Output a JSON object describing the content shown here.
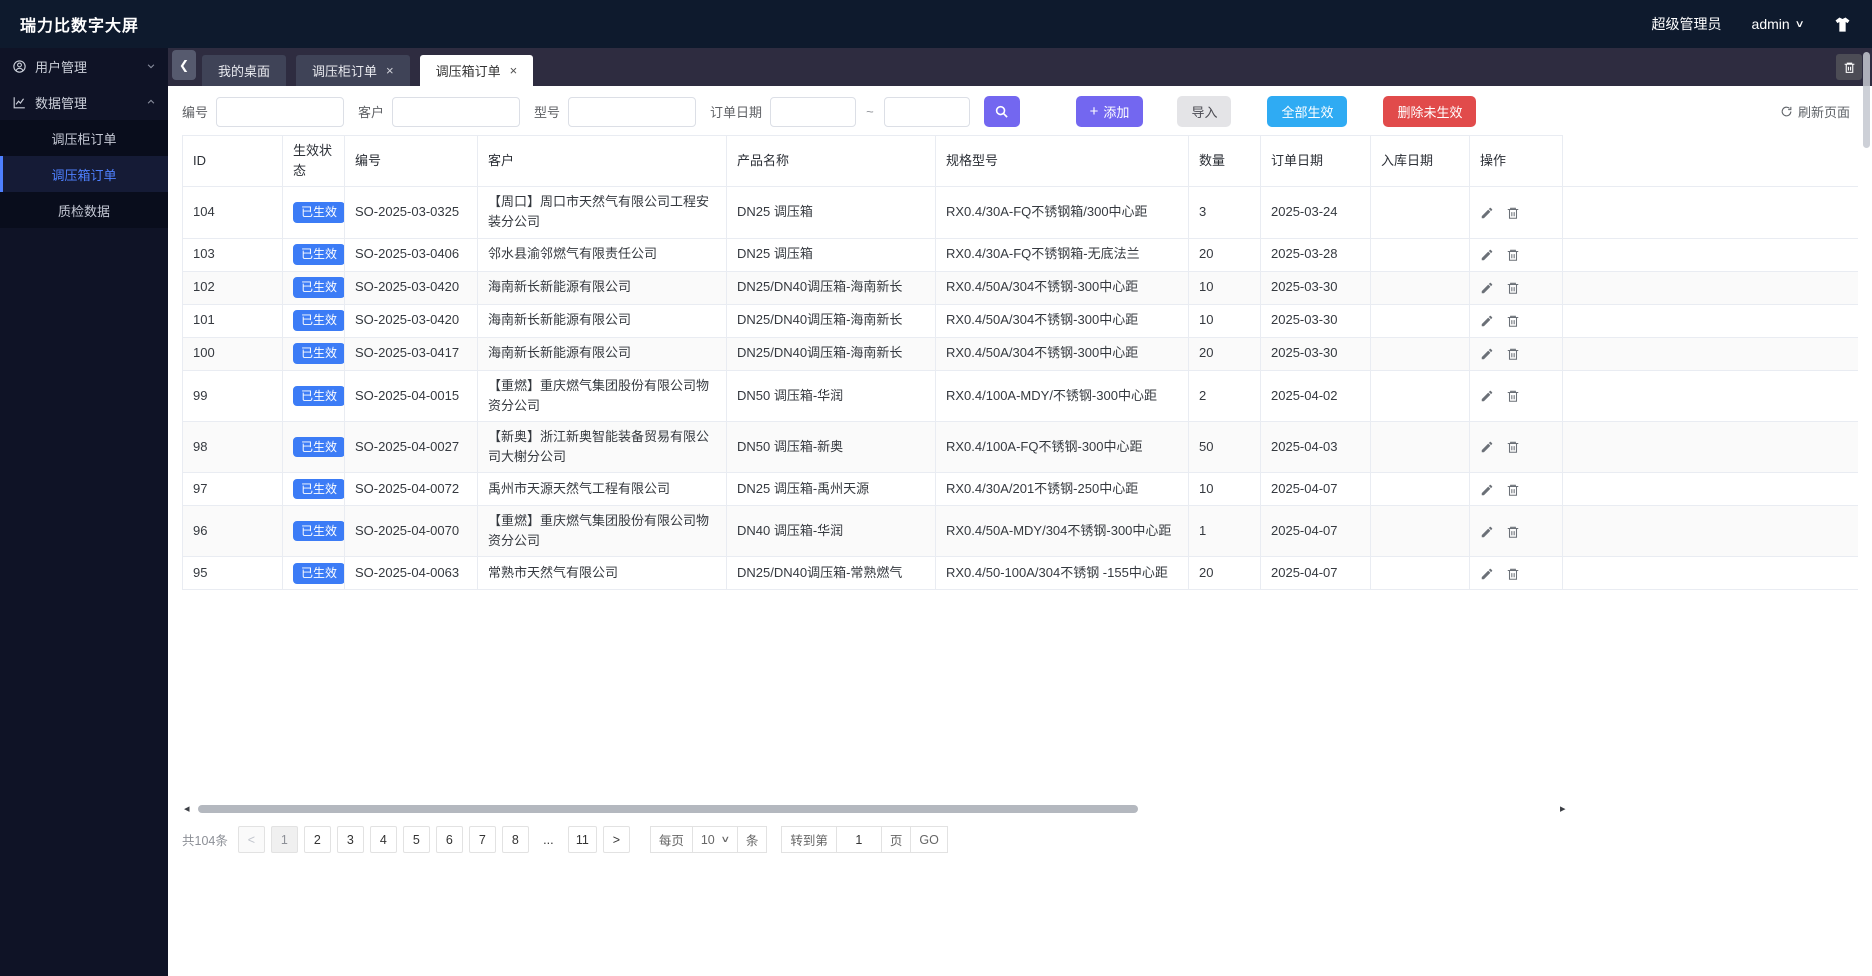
{
  "navbar": {
    "title": "瑞力比数字大屏",
    "role": "超级管理员",
    "username": "admin",
    "caret": "∨"
  },
  "sidebar": {
    "groups": [
      {
        "label": "用户管理",
        "icon": "user-icon",
        "state": "collapsed"
      },
      {
        "label": "数据管理",
        "icon": "chart-icon",
        "state": "expanded",
        "children": [
          {
            "label": "调压柜订单",
            "active": false
          },
          {
            "label": "调压箱订单",
            "active": true
          },
          {
            "label": "质检数据",
            "active": false
          }
        ]
      }
    ]
  },
  "tabbar": {
    "tabs": [
      {
        "label": "我的桌面",
        "closable": false,
        "active": false
      },
      {
        "label": "调压柜订单",
        "closable": true,
        "active": false
      },
      {
        "label": "调压箱订单",
        "closable": true,
        "active": true
      }
    ],
    "close_glyph": "×",
    "prev_glyph": "❮"
  },
  "filters": {
    "fields": [
      {
        "label": "编号",
        "value": "",
        "placeholder": ""
      },
      {
        "label": "客户",
        "value": "",
        "placeholder": ""
      },
      {
        "label": "型号",
        "value": "",
        "placeholder": ""
      }
    ],
    "date_label": "订单日期",
    "date_from": "",
    "date_to": "",
    "range_separator": "~",
    "buttons": {
      "add_plus": "+",
      "add": "添加",
      "import": "导入",
      "activate_all": "全部生效",
      "delete_inactive": "删除未生效",
      "refresh": "刷新页面"
    }
  },
  "table": {
    "columns": [
      "ID",
      "生效状态",
      "编号",
      "客户",
      "产品名称",
      "规格型号",
      "数量",
      "订单日期",
      "入库日期",
      "操作"
    ],
    "rows": [
      {
        "id": "104",
        "status": "已生效",
        "code": "SO-2025-03-0325",
        "customer": "【周口】周口市天然气有限公司工程安装分公司",
        "product": "DN25 调压箱",
        "spec": "RX0.4/30A-FQ不锈钢箱/300中心距",
        "qty": "3",
        "order_date": "2025-03-24",
        "in_date": ""
      },
      {
        "id": "103",
        "status": "已生效",
        "code": "SO-2025-03-0406",
        "customer": "邻水县渝邻燃气有限责任公司",
        "product": "DN25 调压箱",
        "spec": "RX0.4/30A-FQ不锈钢箱-无底法兰",
        "qty": "20",
        "order_date": "2025-03-28",
        "in_date": ""
      },
      {
        "id": "102",
        "status": "已生效",
        "code": "SO-2025-03-0420",
        "customer": "海南新长新能源有限公司",
        "product": "DN25/DN40调压箱-海南新长",
        "spec": "RX0.4/50A/304不锈钢-300中心距",
        "qty": "10",
        "order_date": "2025-03-30",
        "in_date": ""
      },
      {
        "id": "101",
        "status": "已生效",
        "code": "SO-2025-03-0420",
        "customer": "海南新长新能源有限公司",
        "product": "DN25/DN40调压箱-海南新长",
        "spec": "RX0.4/50A/304不锈钢-300中心距",
        "qty": "10",
        "order_date": "2025-03-30",
        "in_date": ""
      },
      {
        "id": "100",
        "status": "已生效",
        "code": "SO-2025-03-0417",
        "customer": "海南新长新能源有限公司",
        "product": "DN25/DN40调压箱-海南新长",
        "spec": "RX0.4/50A/304不锈钢-300中心距",
        "qty": "20",
        "order_date": "2025-03-30",
        "in_date": ""
      },
      {
        "id": "99",
        "status": "已生效",
        "code": "SO-2025-04-0015",
        "customer": "【重燃】重庆燃气集团股份有限公司物资分公司",
        "product": "DN50 调压箱-华润",
        "spec": "RX0.4/100A-MDY/不锈钢-300中心距",
        "qty": "2",
        "order_date": "2025-04-02",
        "in_date": ""
      },
      {
        "id": "98",
        "status": "已生效",
        "code": "SO-2025-04-0027",
        "customer": "【新奥】浙江新奥智能装备贸易有限公司大榭分公司",
        "product": "DN50 调压箱-新奥",
        "spec": "RX0.4/100A-FQ不锈钢-300中心距",
        "qty": "50",
        "order_date": "2025-04-03",
        "in_date": ""
      },
      {
        "id": "97",
        "status": "已生效",
        "code": "SO-2025-04-0072",
        "customer": "禹州市天源天然气工程有限公司",
        "product": "DN25 调压箱-禹州天源",
        "spec": "RX0.4/30A/201不锈钢-250中心距",
        "qty": "10",
        "order_date": "2025-04-07",
        "in_date": ""
      },
      {
        "id": "96",
        "status": "已生效",
        "code": "SO-2025-04-0070",
        "customer": "【重燃】重庆燃气集团股份有限公司物资分公司",
        "product": "DN40 调压箱-华润",
        "spec": "RX0.4/50A-MDY/304不锈钢-300中心距",
        "qty": "1",
        "order_date": "2025-04-07",
        "in_date": ""
      },
      {
        "id": "95",
        "status": "已生效",
        "code": "SO-2025-04-0063",
        "customer": "常熟市天然气有限公司",
        "product": "DN25/DN40调压箱-常熟燃气",
        "spec": "RX0.4/50-100A/304不锈钢 -155中心距",
        "qty": "20",
        "order_date": "2025-04-07",
        "in_date": ""
      }
    ]
  },
  "pagination": {
    "total": "共104条",
    "page_items": [
      {
        "label": "<",
        "type": "prev-disabled"
      },
      {
        "label": "1",
        "type": "current"
      },
      {
        "label": "2",
        "type": "page"
      },
      {
        "label": "3",
        "type": "page"
      },
      {
        "label": "4",
        "type": "page"
      },
      {
        "label": "5",
        "type": "page"
      },
      {
        "label": "6",
        "type": "page"
      },
      {
        "label": "7",
        "type": "page"
      },
      {
        "label": "8",
        "type": "page"
      },
      {
        "label": "...",
        "type": "ellipsis"
      },
      {
        "label": "11",
        "type": "page"
      },
      {
        "label": ">",
        "type": "next"
      }
    ],
    "per_page_prefix": "每页",
    "per_page_value": "10",
    "per_page_suffix": "条",
    "goto_prefix": "转到第",
    "goto_value": "1",
    "goto_suffix": "页",
    "go_label": "GO",
    "select_caret": "∨"
  },
  "colors": {
    "navbar_bg": "#0e1a2d",
    "sidebar_bg": "#0f1326",
    "tabstrip_bg": "#2e2c40",
    "accent_purple": "#7367f0",
    "accent_lightblue": "#2fabf3",
    "danger_red": "#e14b4b",
    "badge_blue": "#3c7cf6",
    "active_menu_blue": "#4e80ff"
  }
}
